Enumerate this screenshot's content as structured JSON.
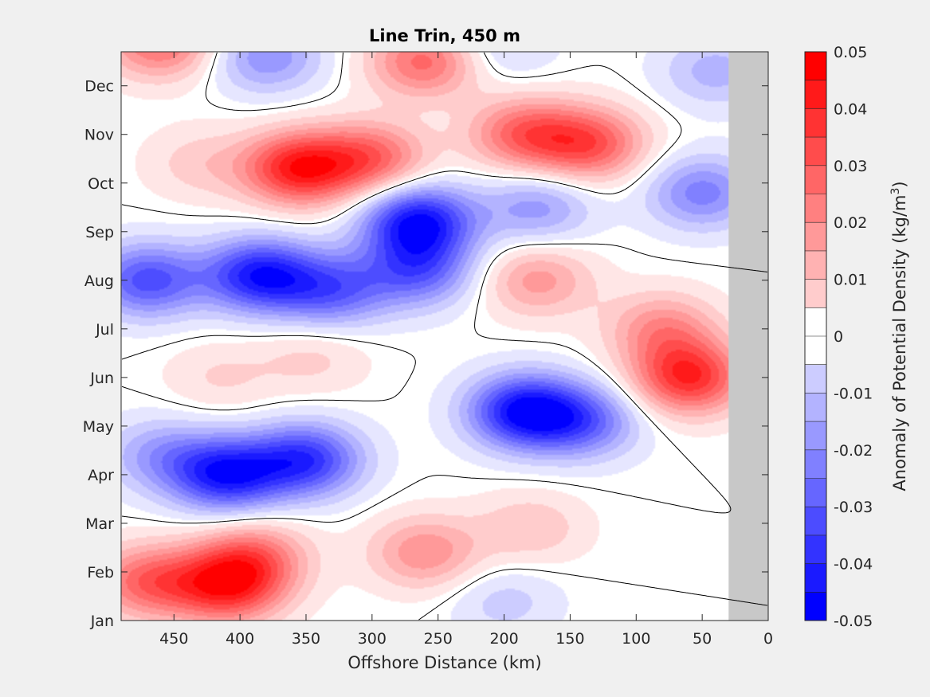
{
  "chart_data": {
    "type": "heatmap",
    "title": "Line Trin, 450 m",
    "xlabel": "Offshore Distance (km)",
    "ylabel": "",
    "xlim": [
      490,
      0
    ],
    "x_reversed": true,
    "x_ticks": [
      "450",
      "400",
      "350",
      "300",
      "250",
      "200",
      "150",
      "100",
      "50",
      "0"
    ],
    "x_tick_values": [
      450,
      400,
      350,
      300,
      250,
      200,
      150,
      100,
      50,
      0
    ],
    "y_ticks": [
      "Jan",
      "Feb",
      "Mar",
      "Apr",
      "May",
      "Jun",
      "Jul",
      "Aug",
      "Sep",
      "Oct",
      "Nov",
      "Dec"
    ],
    "colorbar": {
      "label": "Anomaly of Potential Density (kg/m",
      "label_sup": "3",
      "label_close": ")",
      "ticks": [
        "0.05",
        "0.04",
        "0.03",
        "0.02",
        "0.01",
        "0",
        "-0.01",
        "-0.02",
        "-0.03",
        "-0.04",
        "-0.05"
      ],
      "tick_values": [
        0.05,
        0.04,
        0.03,
        0.02,
        0.01,
        0,
        -0.01,
        -0.02,
        -0.03,
        -0.04,
        -0.05
      ],
      "range": [
        -0.05,
        0.05
      ],
      "levels": 20,
      "positive_color": "#ff0000",
      "negative_color": "#0000ff",
      "neutral_color": "#ffffff"
    },
    "masked_region_color": "#c8c8c8",
    "masked_x_range": [
      30,
      0
    ],
    "zero_contour": true,
    "features": [
      {
        "x": 410,
        "month": 0.7,
        "value": 0.04
      },
      {
        "x": 470,
        "month": 0.8,
        "value": 0.03
      },
      {
        "x": 390,
        "month": 1.3,
        "value": 0.025
      },
      {
        "x": 260,
        "month": 1.4,
        "value": 0.022
      },
      {
        "x": 180,
        "month": 1.9,
        "value": 0.012
      },
      {
        "x": 200,
        "month": 0.4,
        "value": -0.01
      },
      {
        "x": 410,
        "month": 3.0,
        "value": -0.045
      },
      {
        "x": 350,
        "month": 3.3,
        "value": -0.04
      },
      {
        "x": 460,
        "month": 3.4,
        "value": -0.018
      },
      {
        "x": 185,
        "month": 4.3,
        "value": -0.048
      },
      {
        "x": 140,
        "month": 4.1,
        "value": -0.028
      },
      {
        "x": 60,
        "month": 5.0,
        "value": 0.042
      },
      {
        "x": 80,
        "month": 6.0,
        "value": 0.022
      },
      {
        "x": 415,
        "month": 5.0,
        "value": 0.008
      },
      {
        "x": 345,
        "month": 5.4,
        "value": 0.009
      },
      {
        "x": 385,
        "month": 7.1,
        "value": -0.045
      },
      {
        "x": 470,
        "month": 7.0,
        "value": -0.035
      },
      {
        "x": 330,
        "month": 6.8,
        "value": -0.03
      },
      {
        "x": 265,
        "month": 6.0,
        "value": 0.0
      },
      {
        "x": 265,
        "month": 8.2,
        "value": -0.048
      },
      {
        "x": 265,
        "month": 7.2,
        "value": -0.03
      },
      {
        "x": 175,
        "month": 7.0,
        "value": 0.02
      },
      {
        "x": 175,
        "month": 8.5,
        "value": -0.02
      },
      {
        "x": 355,
        "month": 9.3,
        "value": 0.045
      },
      {
        "x": 300,
        "month": 9.5,
        "value": 0.03
      },
      {
        "x": 430,
        "month": 9.4,
        "value": 0.01
      },
      {
        "x": 185,
        "month": 10.0,
        "value": 0.03
      },
      {
        "x": 135,
        "month": 9.8,
        "value": 0.033
      },
      {
        "x": 260,
        "month": 11.5,
        "value": 0.03
      },
      {
        "x": 380,
        "month": 11.6,
        "value": -0.022
      },
      {
        "x": 205,
        "month": 11.8,
        "value": -0.01
      },
      {
        "x": 40,
        "month": 11.3,
        "value": -0.015
      },
      {
        "x": 50,
        "month": 8.8,
        "value": -0.025
      },
      {
        "x": 460,
        "month": 11.9,
        "value": 0.03
      }
    ]
  }
}
